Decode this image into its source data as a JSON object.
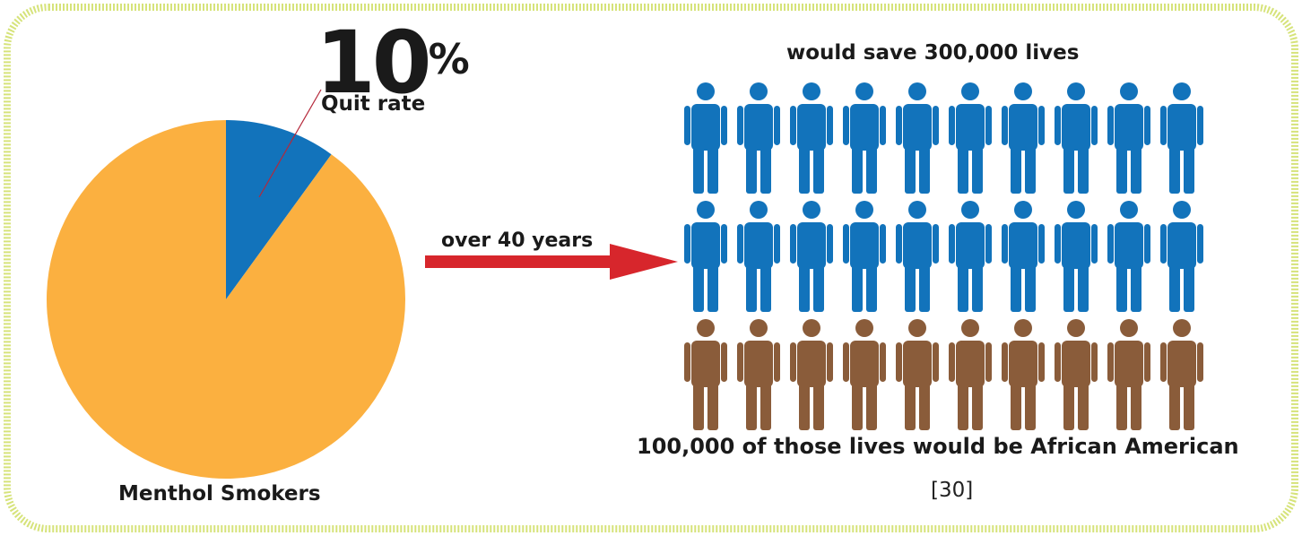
{
  "chart_data": {
    "type": "pie",
    "slices": [
      {
        "name": "Quit rate",
        "value": 10,
        "color": "#1273bb"
      },
      {
        "name": "Menthol Smokers",
        "value": 90,
        "color": "#fbb040"
      }
    ],
    "highlight": {
      "value_text": "10",
      "unit": "%",
      "label": "Quit rate"
    },
    "caption": "Menthol Smokers"
  },
  "arrow": {
    "label": "over 40 years",
    "color": "#d7262c"
  },
  "pictogram": {
    "title": "would save 300,000 lives",
    "rows": [
      {
        "count": 10,
        "color": "#1273bb"
      },
      {
        "count": 10,
        "color": "#1273bb"
      },
      {
        "count": 10,
        "color": "#8a5c3a"
      }
    ],
    "caption": "100,000 of those lives would be African American"
  },
  "source": "[30]",
  "frame": {
    "border_color": "#d6e37a"
  }
}
